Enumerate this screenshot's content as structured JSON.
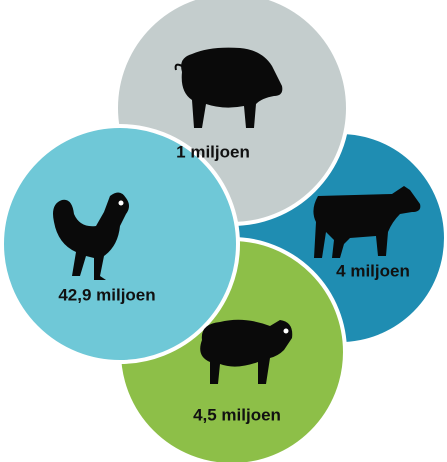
{
  "nodes": [
    {
      "label": "1 miljoen"
    },
    {
      "label": "4 miljoen"
    },
    {
      "label": "42,9 miljoen"
    },
    {
      "label": "4,5 miljoen"
    }
  ]
}
